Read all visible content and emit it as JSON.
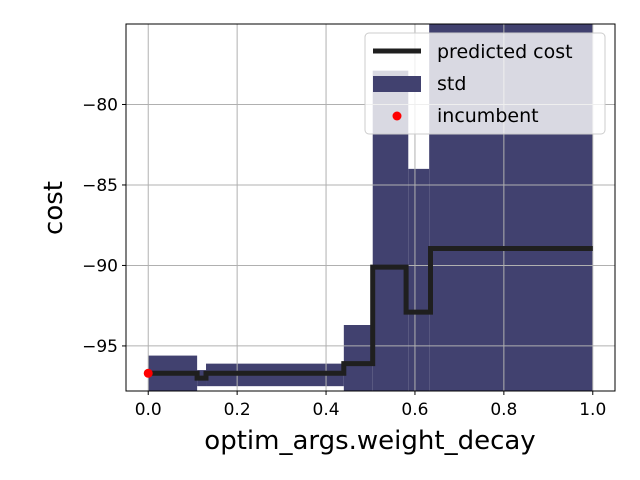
{
  "chart_data": {
    "type": "line",
    "xlabel": "optim_args.weight_decay",
    "ylabel": "cost",
    "xlim": [
      -0.05,
      1.05
    ],
    "ylim": [
      -97.8,
      -75.0
    ],
    "x_ticks": [
      0.0,
      0.2,
      0.4,
      0.6,
      0.8,
      1.0
    ],
    "x_tick_labels": [
      "0.0",
      "0.2",
      "0.4",
      "0.6",
      "0.8",
      "1.0"
    ],
    "y_ticks": [
      -95,
      -90,
      -85,
      -80
    ],
    "y_tick_labels": [
      "−95",
      "−90",
      "−85",
      "−80"
    ],
    "grid": true,
    "legend_position": "top-right",
    "legend": {
      "predicted_label": "predicted cost",
      "std_label": "std",
      "incumbent_label": "incumbent"
    },
    "colors": {
      "predicted": "#1f1f1f",
      "std": "#41416f",
      "incumbent": "#ff0000",
      "grid": "#b0b0b0"
    },
    "predicted_cost": [
      {
        "x": 0.0,
        "y": -96.7
      },
      {
        "x": 0.11,
        "y": -96.7
      },
      {
        "x": 0.11,
        "y": -97.0
      },
      {
        "x": 0.13,
        "y": -97.0
      },
      {
        "x": 0.13,
        "y": -96.7
      },
      {
        "x": 0.44,
        "y": -96.7
      },
      {
        "x": 0.44,
        "y": -96.1
      },
      {
        "x": 0.505,
        "y": -96.1
      },
      {
        "x": 0.505,
        "y": -90.1
      },
      {
        "x": 0.58,
        "y": -90.1
      },
      {
        "x": 0.58,
        "y": -92.9
      },
      {
        "x": 0.635,
        "y": -92.9
      },
      {
        "x": 0.635,
        "y": -88.95
      },
      {
        "x": 1.0,
        "y": -88.95
      }
    ],
    "std_band": [
      {
        "x0": 0.0,
        "x1": 0.11,
        "lower": -97.8,
        "upper": -95.6
      },
      {
        "x0": 0.11,
        "x1": 0.13,
        "lower": -97.5,
        "upper": -96.5
      },
      {
        "x0": 0.13,
        "x1": 0.44,
        "lower": -97.5,
        "upper": -96.1
      },
      {
        "x0": 0.44,
        "x1": 0.505,
        "lower": -97.8,
        "upper": -93.7
      },
      {
        "x0": 0.505,
        "x1": 0.585,
        "lower": -97.8,
        "upper": -77.9
      },
      {
        "x0": 0.585,
        "x1": 0.632,
        "lower": -97.8,
        "upper": -84.0
      },
      {
        "x0": 0.632,
        "x1": 1.0,
        "lower": -97.8,
        "upper": -75.0
      }
    ],
    "incumbent": {
      "x": 0.0,
      "y": -96.7
    }
  }
}
